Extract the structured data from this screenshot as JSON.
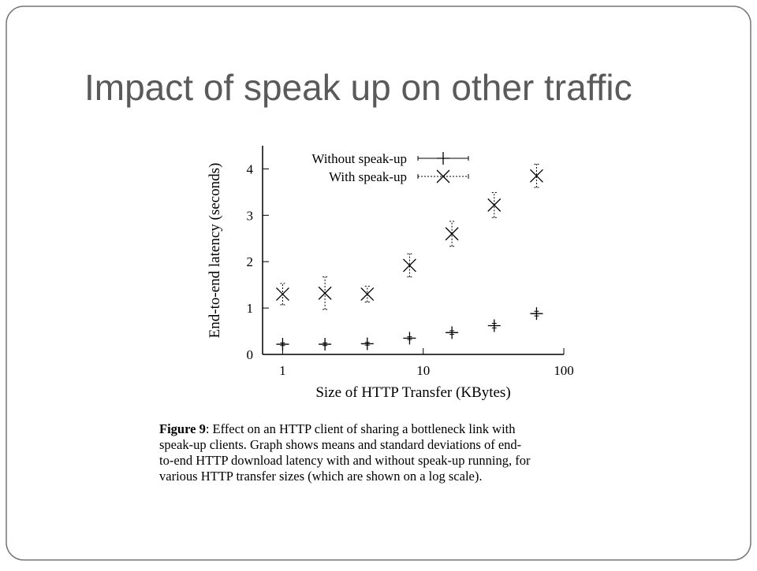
{
  "title": "Impact of speak up on other traffic",
  "chart_data": {
    "type": "scatter",
    "x_label": "Size of HTTP Transfer (KBytes)",
    "y_label": "End-to-end latency (seconds)",
    "x": [
      1,
      2,
      4,
      8,
      16,
      32,
      64
    ],
    "series": [
      {
        "name": "Without speak-up",
        "color": "#000000",
        "marker": "plus",
        "values": [
          0.22,
          0.22,
          0.23,
          0.35,
          0.47,
          0.62,
          0.88
        ],
        "errors": [
          0.03,
          0.03,
          0.03,
          0.03,
          0.04,
          0.05,
          0.05
        ]
      },
      {
        "name": "With speak-up",
        "color": "#000000",
        "marker": "cross",
        "values": [
          1.3,
          1.32,
          1.3,
          1.92,
          2.6,
          3.22,
          3.85
        ],
        "errors": [
          0.23,
          0.35,
          0.17,
          0.25,
          0.27,
          0.27,
          0.25
        ]
      }
    ],
    "xscale": "log",
    "xlim": [
      0.72,
      100
    ],
    "xticks": [
      1,
      10,
      100
    ],
    "ylim": [
      0,
      4.5
    ],
    "yticks": [
      0,
      1,
      2,
      3,
      4
    ],
    "legend": "top"
  },
  "caption": {
    "label": "Figure 9",
    "lines": [
      ": Effect on an HTTP client of sharing a bottleneck link with",
      "speak-up clients. Graph shows means and standard deviations of end-",
      "to-end HTTP download latency with and without speak-up running, for",
      "various HTTP transfer sizes (which are shown on a log scale)."
    ]
  }
}
